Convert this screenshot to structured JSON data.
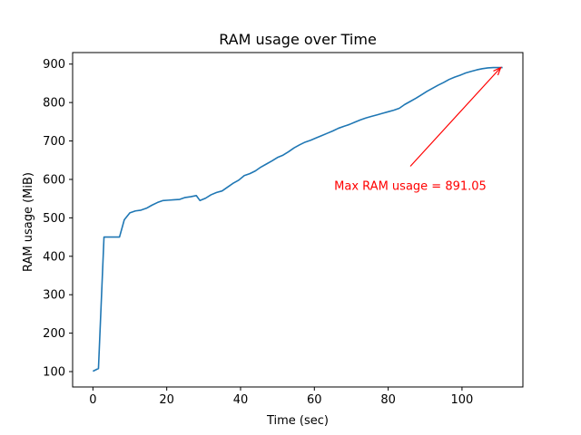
{
  "chart_data": {
    "type": "line",
    "title": "RAM usage over Time",
    "xlabel": "Time (sec)",
    "ylabel": "RAM usage (MiB)",
    "xlim": [
      -5.5,
      116.5
    ],
    "ylim": [
      60,
      930
    ],
    "xticks": [
      0,
      20,
      40,
      60,
      80,
      100
    ],
    "yticks": [
      100,
      200,
      300,
      400,
      500,
      600,
      700,
      800,
      900
    ],
    "grid": false,
    "line_color": "#1f77b4",
    "series": [
      {
        "name": "",
        "x": [
          0,
          1.5,
          3,
          5,
          7.2,
          8.5,
          10,
          11.5,
          13,
          14.5,
          16,
          17.5,
          19,
          20.5,
          22,
          23.5,
          25,
          26.5,
          28,
          29,
          30.5,
          32,
          33.5,
          35,
          36.5,
          38,
          39.5,
          41,
          42.5,
          44,
          45.5,
          47,
          48.5,
          50,
          51.5,
          53,
          54.5,
          56,
          57.5,
          59,
          60.5,
          62,
          63.5,
          65,
          66.5,
          68,
          69.5,
          71,
          72.5,
          74,
          75.5,
          77,
          78.5,
          80,
          81.5,
          83,
          84.5,
          86,
          87.5,
          89,
          90.5,
          92,
          93.5,
          95,
          96.5,
          98,
          99.5,
          101,
          102.5,
          104,
          105.5,
          107,
          108.5,
          110,
          111
        ],
        "y": [
          101,
          108,
          450,
          450,
          450,
          495,
          513,
          518,
          520,
          525,
          533,
          540,
          545,
          546,
          547,
          548,
          553,
          555,
          558,
          545,
          551,
          560,
          566,
          570,
          580,
          590,
          598,
          610,
          615,
          622,
          632,
          640,
          648,
          657,
          663,
          672,
          682,
          690,
          697,
          702,
          708,
          714,
          720,
          726,
          733,
          738,
          743,
          749,
          755,
          760,
          764,
          768,
          772,
          776,
          780,
          785,
          795,
          803,
          811,
          820,
          829,
          837,
          845,
          852,
          860,
          866,
          871,
          877,
          881,
          885,
          888,
          890,
          891,
          891.05,
          891.05
        ],
        "color": "#1f77b4"
      }
    ],
    "annotation": {
      "text": "Max RAM usage = 891.05",
      "point": [
        110.5,
        891.05
      ],
      "text_anchor": [
        86,
        620
      ],
      "color": "#ff0000"
    }
  }
}
